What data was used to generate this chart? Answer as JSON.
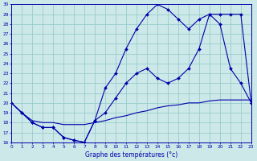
{
  "xlabel": "Graphe des températures (°c)",
  "bg_color": "#cce8e8",
  "line_color": "#0000aa",
  "grid_color": "#99cccc",
  "ylim": [
    16,
    30
  ],
  "xlim": [
    0,
    23
  ],
  "yticks": [
    16,
    17,
    18,
    19,
    20,
    21,
    22,
    23,
    24,
    25,
    26,
    27,
    28,
    29,
    30
  ],
  "xticks": [
    0,
    1,
    2,
    3,
    4,
    5,
    6,
    7,
    8,
    9,
    10,
    11,
    12,
    13,
    14,
    15,
    16,
    17,
    18,
    19,
    20,
    21,
    22,
    23
  ],
  "series1_x": [
    0,
    1,
    2,
    3,
    4,
    5,
    6,
    7,
    8,
    9,
    10,
    11,
    12,
    13,
    14,
    15,
    16,
    17,
    18,
    19,
    20,
    21,
    22,
    23
  ],
  "series1_y": [
    20.0,
    19.0,
    18.0,
    17.5,
    17.5,
    16.5,
    16.2,
    16.0,
    18.2,
    21.5,
    23.0,
    25.5,
    27.5,
    29.0,
    30.0,
    29.5,
    28.5,
    27.5,
    28.5,
    29.0,
    28.0,
    23.5,
    22.0,
    20.0
  ],
  "series2_x": [
    0,
    1,
    2,
    3,
    4,
    5,
    6,
    7,
    8,
    9,
    10,
    11,
    12,
    13,
    14,
    15,
    16,
    17,
    18,
    19,
    20,
    21,
    22,
    23
  ],
  "series2_y": [
    20.0,
    19.0,
    18.0,
    17.5,
    17.5,
    16.5,
    16.2,
    16.0,
    18.2,
    19.0,
    20.5,
    22.0,
    23.0,
    23.5,
    22.5,
    22.0,
    22.5,
    23.5,
    25.5,
    29.0,
    29.0,
    29.0,
    29.0,
    20.0
  ],
  "series3_x": [
    0,
    1,
    2,
    3,
    4,
    5,
    6,
    7,
    8,
    9,
    10,
    11,
    12,
    13,
    14,
    15,
    16,
    17,
    18,
    19,
    20,
    21,
    22,
    23
  ],
  "series3_y": [
    20.0,
    19.0,
    18.2,
    18.0,
    18.0,
    17.8,
    17.8,
    17.8,
    18.0,
    18.2,
    18.5,
    18.7,
    19.0,
    19.2,
    19.5,
    19.7,
    19.8,
    20.0,
    20.0,
    20.2,
    20.3,
    20.3,
    20.3,
    20.3
  ]
}
